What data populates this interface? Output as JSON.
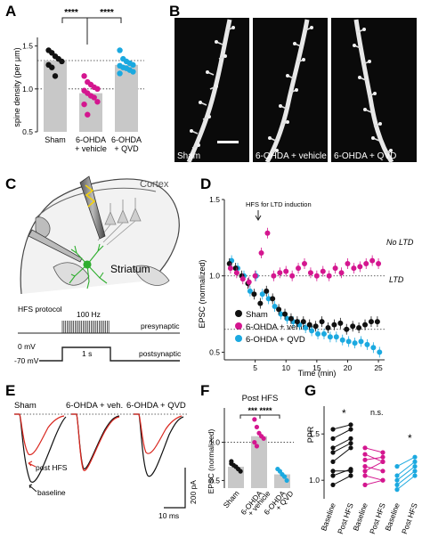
{
  "colors": {
    "sham": "#111111",
    "vehicle": "#d4168f",
    "qvd": "#1ba9e0",
    "bar": "#c8c8c8",
    "red_trace": "#d9271f",
    "green_cell": "#2eae2e",
    "panel_b_bg": "#0a0a0a"
  },
  "panels": {
    "a": "A",
    "b": "B",
    "c": "C",
    "d": "D",
    "e": "E",
    "f": "F",
    "g": "G"
  },
  "panel_a": {
    "sig_left": "****",
    "sig_right": "****"
  },
  "panel_b": {
    "labels": [
      "Sham",
      "6-OHDA + vehicle",
      "6-OHDA + QVD"
    ]
  },
  "panel_c": {
    "cortex": "Cortex",
    "striatum": "Striatum",
    "hfs_protocol": "HFS protocol",
    "hz": "100 Hz",
    "presynaptic": "presynaptic",
    "mv0": "0 mV",
    "mv70": "-70 mV",
    "duration": "1 s",
    "postsynaptic": "postsynaptic"
  },
  "panel_d": {
    "annotation": "HFS for LTD induction",
    "no_ltd": "No LTD",
    "ltd": "LTD",
    "legend": [
      "Sham",
      "6-OHDA + vehicle",
      "6-OHDA + QVD"
    ]
  },
  "panel_e": {
    "titles": [
      "Sham",
      "6-OHDA + veh.",
      "6-OHDA + QVD"
    ],
    "post_hfs": "post HFS",
    "baseline": "baseline",
    "scale_y": "200 pA",
    "scale_x": "10 ms"
  },
  "panel_f": {
    "title": "Post HFS",
    "sig": "*** ****"
  },
  "panel_g": {
    "ns": "n.s.",
    "star_left": "*",
    "star_right": "*"
  },
  "chart_data": [
    {
      "panel": "A",
      "type": "bar",
      "ylabel": "spine density (per μm)",
      "ylim": [
        0.5,
        1.6
      ],
      "yticks": [
        0.5,
        1.0,
        1.5
      ],
      "reference_lines": [
        1.0,
        1.33
      ],
      "categories": [
        "Sham",
        "6-OHDA + vehicle",
        "6-OHDA + QVD"
      ],
      "values": [
        1.33,
        0.95,
        1.28
      ],
      "points": [
        [
          1.45,
          1.42,
          1.38,
          1.35,
          1.32,
          1.28,
          1.25,
          1.15
        ],
        [
          1.15,
          1.08,
          1.05,
          1.02,
          1.0,
          0.98,
          0.95,
          0.92,
          0.9,
          0.85,
          0.82,
          0.7
        ],
        [
          1.45,
          1.35,
          1.32,
          1.3,
          1.28,
          1.27,
          1.25,
          1.24,
          1.22,
          1.2,
          1.18
        ]
      ]
    },
    {
      "panel": "D",
      "type": "scatter",
      "xlabel": "Time (min)",
      "ylabel": "EPSC (normalized)",
      "xlim": [
        0,
        26
      ],
      "ylim": [
        0.45,
        1.5
      ],
      "xticks": [
        5,
        10,
        15,
        20,
        25
      ],
      "yticks": [
        0.5,
        1.0,
        1.5
      ],
      "reference_lines": [
        1.0,
        0.65
      ],
      "hfs_time": 6,
      "x": [
        1,
        2,
        3,
        4,
        5,
        6,
        7,
        8,
        9,
        10,
        11,
        12,
        13,
        14,
        15,
        16,
        17,
        18,
        19,
        20,
        21,
        22,
        23,
        24,
        25
      ],
      "series": [
        {
          "name": "Sham",
          "values": [
            1.08,
            1.05,
            1.0,
            0.95,
            0.88,
            0.82,
            0.9,
            0.85,
            0.78,
            0.75,
            0.72,
            0.7,
            0.7,
            0.68,
            0.67,
            0.7,
            0.66,
            0.68,
            0.69,
            0.65,
            0.67,
            0.66,
            0.68,
            0.7,
            0.7
          ]
        },
        {
          "name": "6-OHDA + vehicle",
          "values": [
            1.05,
            1.02,
            0.98,
            0.96,
            1.0,
            1.15,
            1.28,
            1.0,
            1.02,
            1.03,
            1.0,
            1.05,
            1.08,
            1.02,
            1.0,
            1.03,
            1.0,
            1.05,
            1.02,
            1.08,
            1.05,
            1.06,
            1.08,
            1.1,
            1.08
          ]
        },
        {
          "name": "6-OHDA + QVD",
          "values": [
            1.1,
            1.05,
            1.0,
            0.9,
            1.0,
            0.88,
            0.85,
            0.8,
            0.75,
            0.72,
            0.7,
            0.68,
            0.66,
            0.64,
            0.62,
            0.62,
            0.6,
            0.6,
            0.58,
            0.57,
            0.56,
            0.57,
            0.55,
            0.53,
            0.5
          ]
        }
      ]
    },
    {
      "panel": "F",
      "type": "bar",
      "ylabel": "EPSC (normalized)",
      "ylim": [
        0.4,
        1.45
      ],
      "yticks": [
        0.5,
        1.0
      ],
      "reference_lines": [
        1.0
      ],
      "categories": [
        "Sham",
        "6-OHDA + vehicle",
        "6-OHDA + QVD"
      ],
      "values": [
        0.68,
        1.08,
        0.58
      ],
      "points": [
        [
          0.72,
          0.7,
          0.68,
          0.65,
          0.62,
          0.75
        ],
        [
          1.3,
          1.2,
          1.12,
          1.08,
          1.05,
          1.0,
          0.95
        ],
        [
          0.65,
          0.62,
          0.58,
          0.55,
          0.5
        ]
      ]
    },
    {
      "panel": "G",
      "type": "line",
      "ylabel": "PPR",
      "ylim": [
        0.8,
        1.8
      ],
      "yticks": [
        1.0,
        1.5
      ],
      "categories": [
        "Baseline",
        "Post HFS"
      ],
      "series": [
        {
          "name": "Sham",
          "pairs": [
            [
              1.55,
              1.6
            ],
            [
              1.45,
              1.55
            ],
            [
              1.35,
              1.45
            ],
            [
              1.3,
              1.4
            ],
            [
              1.2,
              1.35
            ],
            [
              1.1,
              1.1
            ],
            [
              1.05,
              1.12
            ],
            [
              0.95,
              1.05
            ]
          ]
        },
        {
          "name": "6-OHDA + vehicle",
          "pairs": [
            [
              1.35,
              1.3
            ],
            [
              1.28,
              1.2
            ],
            [
              1.22,
              1.25
            ],
            [
              1.15,
              1.1
            ],
            [
              1.1,
              1.2
            ],
            [
              1.05,
              1.0
            ],
            [
              0.95,
              1.0
            ]
          ]
        },
        {
          "name": "6-OHDA + QVD",
          "pairs": [
            [
              1.15,
              1.25
            ],
            [
              1.05,
              1.2
            ],
            [
              1.0,
              1.15
            ],
            [
              0.95,
              1.1
            ],
            [
              0.9,
              1.05
            ]
          ]
        }
      ]
    }
  ]
}
